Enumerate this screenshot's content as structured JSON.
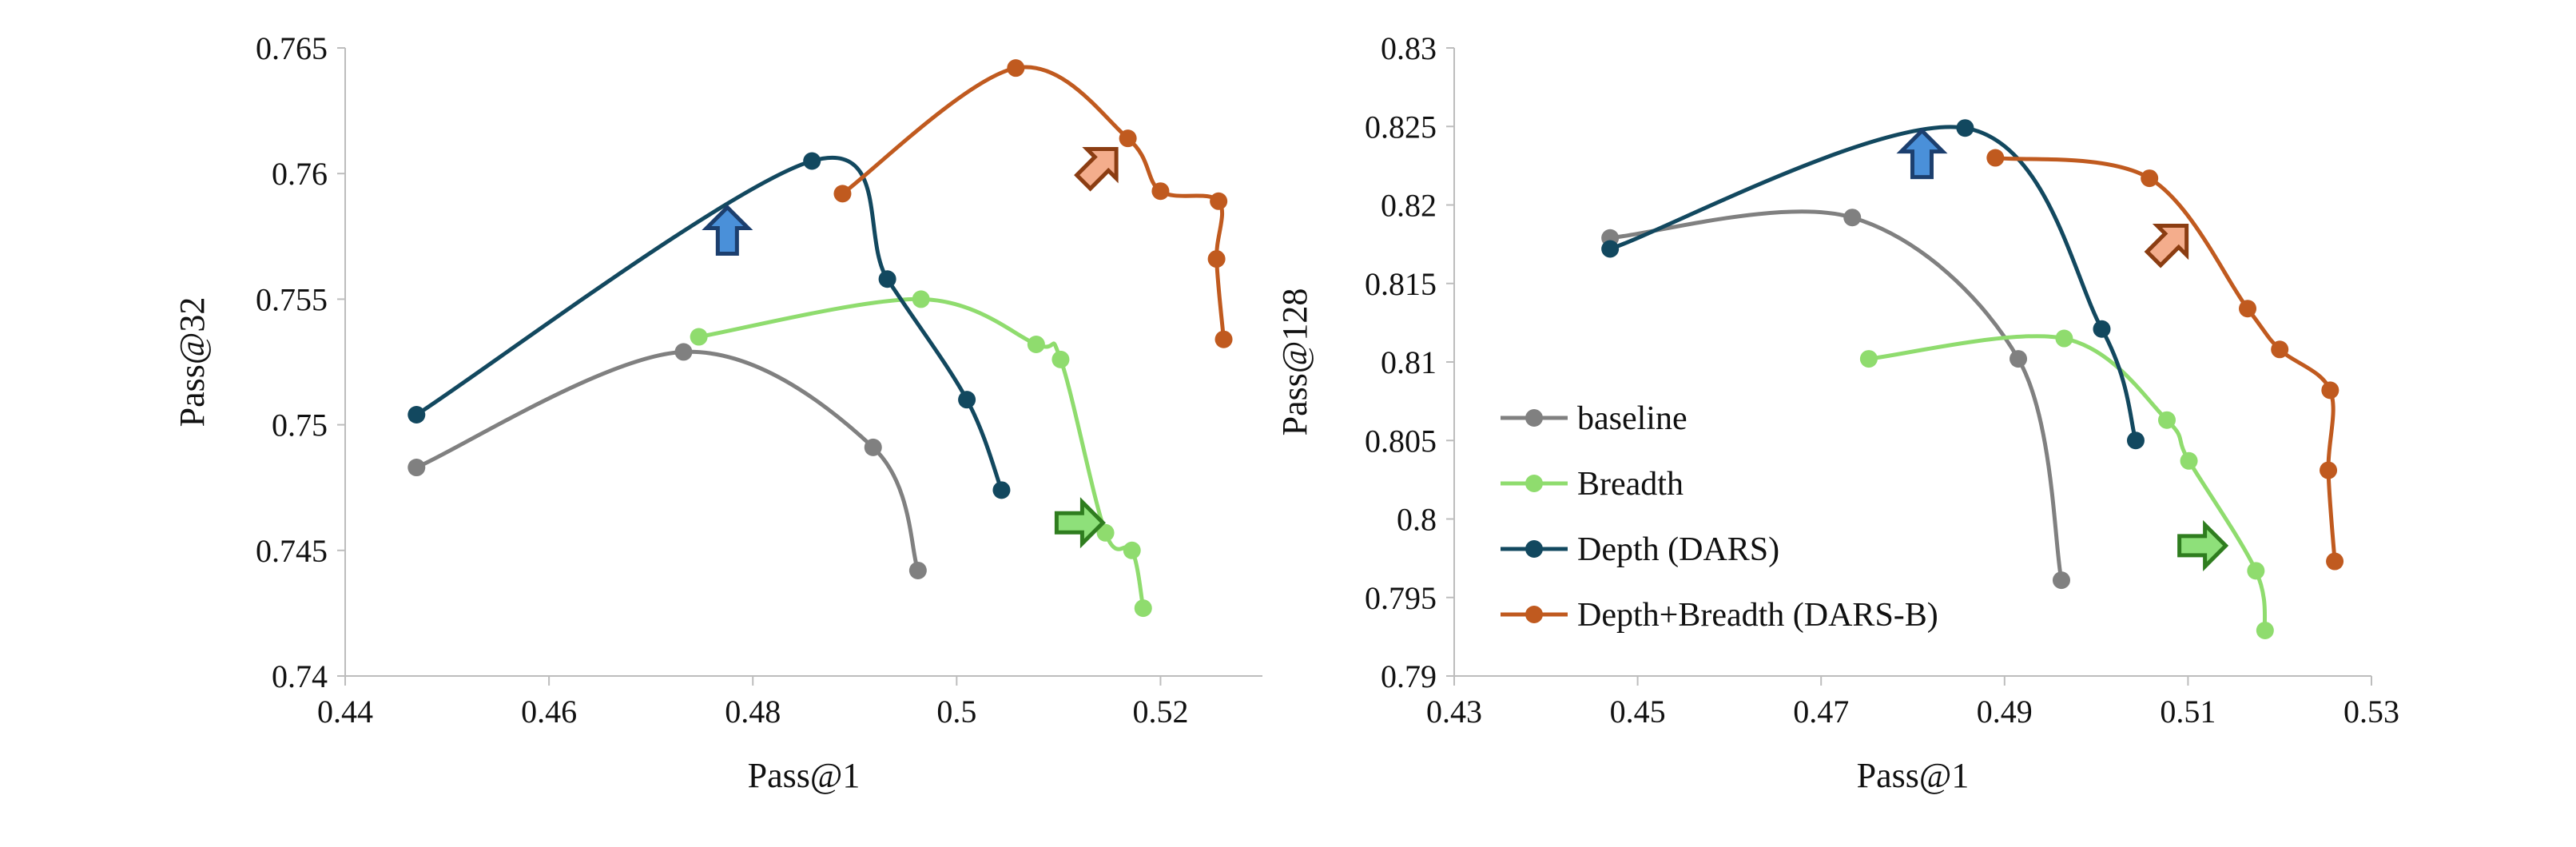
{
  "series_styles": {
    "baseline": "#808080",
    "Breadth": "#8fdc6e",
    "Depth (DARS)": "#12485f",
    "Depth+Breadth (DARS-B)": "#c05a1f"
  },
  "arrow_colors": {
    "blue": {
      "fill": "#4a90d9",
      "stroke": "#1c3f6e"
    },
    "orange": {
      "fill": "#f4ad8c",
      "stroke": "#8b3d12"
    },
    "green": {
      "fill": "#8ee07a",
      "stroke": "#2f7d1f"
    }
  },
  "chart_data": [
    {
      "type": "line",
      "xlabel": "Pass@1",
      "ylabel": "Pass@32",
      "xlim": [
        0.44,
        0.53
      ],
      "ylim": [
        0.74,
        0.765
      ],
      "xticks": [
        "0.44",
        "0.46",
        "0.48",
        "0.5",
        "0.52"
      ],
      "yticks": [
        "0.74",
        "0.745",
        "0.75",
        "0.755",
        "0.76",
        "0.765"
      ],
      "grid": false,
      "series": [
        {
          "name": "baseline",
          "points": [
            [
              0.447,
              0.7483
            ],
            [
              0.4732,
              0.7529
            ],
            [
              0.4918,
              0.7491
            ],
            [
              0.4962,
              0.7442
            ]
          ]
        },
        {
          "name": "Breadth",
          "points": [
            [
              0.4747,
              0.7535
            ],
            [
              0.4965,
              0.755
            ],
            [
              0.5078,
              0.7532
            ],
            [
              0.5102,
              0.7526
            ],
            [
              0.5146,
              0.7457
            ],
            [
              0.5172,
              0.745
            ],
            [
              0.5183,
              0.7427
            ]
          ]
        },
        {
          "name": "Depth (DARS)",
          "points": [
            [
              0.447,
              0.7504
            ],
            [
              0.4858,
              0.7605
            ],
            [
              0.4932,
              0.7558
            ],
            [
              0.501,
              0.751
            ],
            [
              0.5044,
              0.7474
            ]
          ]
        },
        {
          "name": "Depth+Breadth (DARS-B)",
          "points": [
            [
              0.4888,
              0.7592
            ],
            [
              0.5058,
              0.7642
            ],
            [
              0.5168,
              0.7614
            ],
            [
              0.52,
              0.7593
            ],
            [
              0.5257,
              0.7589
            ],
            [
              0.5255,
              0.7566
            ],
            [
              0.5262,
              0.7534
            ]
          ]
        }
      ],
      "arrows": [
        {
          "color": "blue",
          "direction": "up",
          "x": 0.4775,
          "y": 0.7577
        },
        {
          "color": "orange",
          "direction": "up-right",
          "x": 0.514,
          "y": 0.7603
        },
        {
          "color": "green",
          "direction": "right",
          "x": 0.512,
          "y": 0.7461
        }
      ]
    },
    {
      "type": "line",
      "xlabel": "Pass@1",
      "ylabel": "Pass@128",
      "xlim": [
        0.43,
        0.53
      ],
      "ylim": [
        0.79,
        0.83
      ],
      "xticks": [
        "0.43",
        "0.45",
        "0.47",
        "0.49",
        "0.51",
        "0.53"
      ],
      "yticks": [
        "0.79",
        "0.795",
        "0.8",
        "0.805",
        "0.81",
        "0.815",
        "0.82",
        "0.825",
        "0.83"
      ],
      "grid": false,
      "legend_position": "lower-left",
      "series": [
        {
          "name": "baseline",
          "points": [
            [
              0.447,
              0.8179
            ],
            [
              0.4734,
              0.8192
            ],
            [
              0.4915,
              0.8102
            ],
            [
              0.4962,
              0.7961
            ]
          ]
        },
        {
          "name": "Breadth",
          "points": [
            [
              0.4752,
              0.8102
            ],
            [
              0.4965,
              0.8115
            ],
            [
              0.5077,
              0.8063
            ],
            [
              0.5101,
              0.8037
            ],
            [
              0.5174,
              0.7967
            ],
            [
              0.5184,
              0.7929
            ]
          ]
        },
        {
          "name": "Depth (DARS)",
          "points": [
            [
              0.447,
              0.8172
            ],
            [
              0.4857,
              0.8249
            ],
            [
              0.5006,
              0.8121
            ],
            [
              0.5043,
              0.805
            ]
          ]
        },
        {
          "name": "Depth+Breadth (DARS-B)",
          "points": [
            [
              0.489,
              0.823
            ],
            [
              0.5058,
              0.8217
            ],
            [
              0.5165,
              0.8134
            ],
            [
              0.52,
              0.8108
            ],
            [
              0.5255,
              0.8082
            ],
            [
              0.5253,
              0.8031
            ],
            [
              0.526,
              0.7973
            ]
          ]
        }
      ],
      "arrows": [
        {
          "color": "blue",
          "direction": "up",
          "x": 0.481,
          "y": 0.8232
        },
        {
          "color": "orange",
          "direction": "up-right",
          "x": 0.508,
          "y": 0.8176
        },
        {
          "color": "green",
          "direction": "right",
          "x": 0.5115,
          "y": 0.7983
        }
      ],
      "legend": [
        "baseline",
        "Breadth",
        "Depth (DARS)",
        "Depth+Breadth (DARS-B)"
      ]
    }
  ]
}
